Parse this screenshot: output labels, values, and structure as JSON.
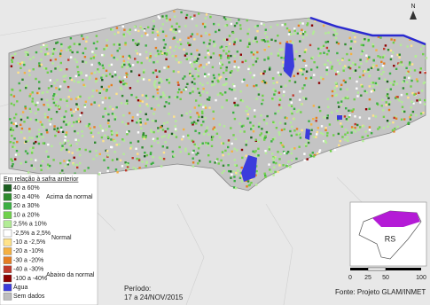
{
  "legend": {
    "title": "Em relação à safra anterior",
    "items": [
      {
        "label": "40 a 60%",
        "color": "#1b5e20"
      },
      {
        "label": "30 a 40%",
        "color": "#2e8b2e"
      },
      {
        "label": "20 a 30%",
        "color": "#3cb043"
      },
      {
        "label": "10 a 20%",
        "color": "#6fd14a"
      },
      {
        "label": "2,5% a 10%",
        "color": "#b2ec95"
      },
      {
        "label": "-2,5% a 2,5%",
        "color": "#ffffff"
      },
      {
        "label": "-10 a -2,5%",
        "color": "#ffe38a"
      },
      {
        "label": "-20 a -10%",
        "color": "#f5b041"
      },
      {
        "label": "-30 a -20%",
        "color": "#e67e22"
      },
      {
        "label": "-40 a -30%",
        "color": "#c0392b"
      },
      {
        "label": "-100 a -40%",
        "color": "#8b0000"
      },
      {
        "label": "Água",
        "color": "#3b3bdc"
      },
      {
        "label": "Sem dados",
        "color": "#bdbdbd"
      }
    ],
    "groups": [
      "Acima da normal",
      "Normal",
      "Abaixo da normal"
    ]
  },
  "period": {
    "label": "Período:",
    "dates": "17 a 24/NOV/2015"
  },
  "source": "Fonte: Projeto GLAM/INMET",
  "inset": {
    "label": "RS"
  },
  "scale": {
    "ticks": [
      "0",
      "25",
      "50",
      "100"
    ]
  },
  "north": "N"
}
